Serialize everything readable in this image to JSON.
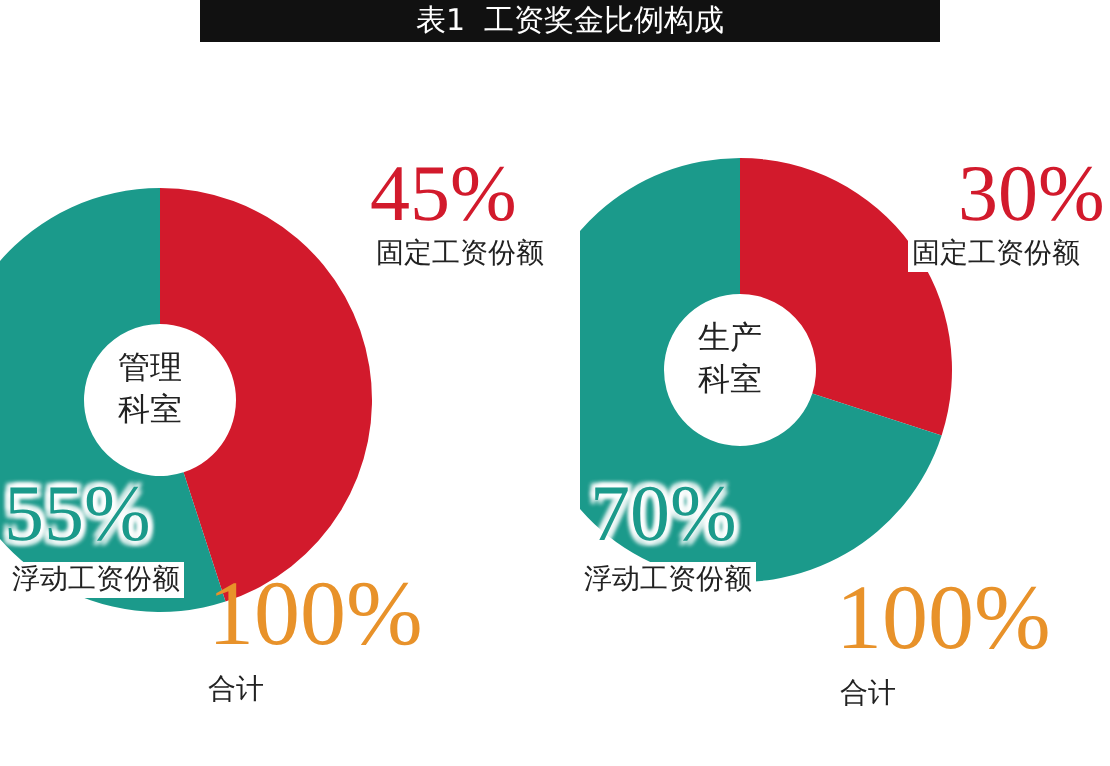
{
  "chart_data": [
    {
      "type": "donut",
      "title": "表1  工资奖金比例构成",
      "categories": [
        "固定工资份额",
        "浮动工资份额"
      ],
      "values": [
        45,
        55
      ],
      "colors": [
        "#d21a2c",
        "#1b9a8b"
      ],
      "value_labels": [
        "45%",
        "55%"
      ],
      "annotations": [
        "管理科室",
        "100%",
        "合计"
      ],
      "legend": false
    },
    {
      "type": "donut",
      "categories": [
        "固定工资份额",
        "浮动工资份额"
      ],
      "values": [
        30,
        70
      ],
      "colors": [
        "#d21a2c",
        "#1b9a8b"
      ],
      "value_labels": [
        "30%",
        "70%"
      ],
      "annotations": [
        "生产科室",
        "100%",
        "合计"
      ],
      "legend": false
    }
  ]
}
